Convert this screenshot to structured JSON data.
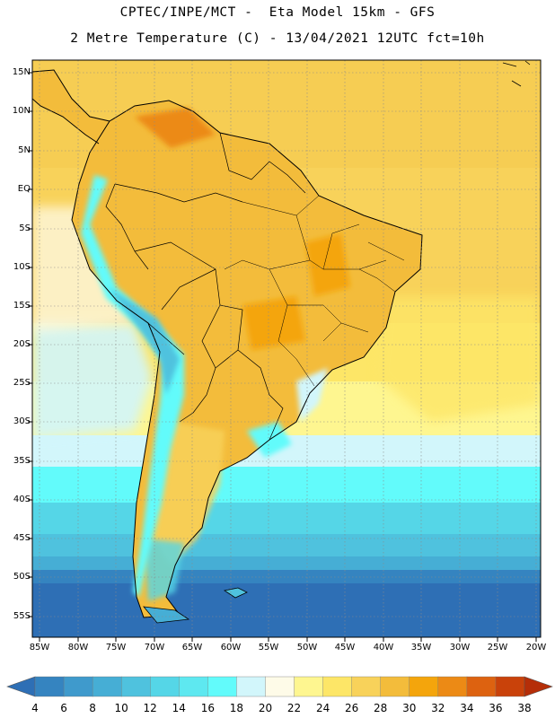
{
  "header": {
    "line1": "CPTEC/INPE/MCT -  Eta Model 15km - GFS",
    "line2": "2 Metre Temperature (C) - 13/04/2021 12UTC fct=10h"
  },
  "axes": {
    "lat_labels": [
      "15N",
      "10N",
      "5N",
      "EQ",
      "5S",
      "10S",
      "15S",
      "20S",
      "25S",
      "30S",
      "35S",
      "40S",
      "45S",
      "50S",
      "55S"
    ],
    "lon_labels": [
      "85W",
      "80W",
      "75W",
      "70W",
      "65W",
      "60W",
      "55W",
      "50W",
      "45W",
      "40W",
      "35W",
      "30W",
      "25W",
      "20W"
    ]
  },
  "legend": {
    "values": [
      "4",
      "6",
      "8",
      "10",
      "12",
      "14",
      "16",
      "18",
      "20",
      "22",
      "24",
      "26",
      "28",
      "30",
      "32",
      "34",
      "36",
      "38"
    ],
    "colors": [
      "#2e6fb5",
      "#3584c0",
      "#3f9acc",
      "#46aed5",
      "#4fc2de",
      "#55d6e7",
      "#5ee8f0",
      "#62fbfb",
      "#d2f6fb",
      "#fefbe8",
      "#fef690",
      "#fde667",
      "#f8d25a",
      "#f3bc3b",
      "#f4a50c",
      "#ec8a15",
      "#dd6210",
      "#c9420a",
      "#b52e08"
    ]
  },
  "colors": {
    "ocean_tropical": "#f6cd53",
    "ocean_warm": "#f8d25a",
    "ocean_cool": "#fde667",
    "ocean_cold": "#46aed5",
    "ocean_south": "#2e6fb5",
    "land": "#f3bc3b",
    "andes": "#62fbfb"
  }
}
